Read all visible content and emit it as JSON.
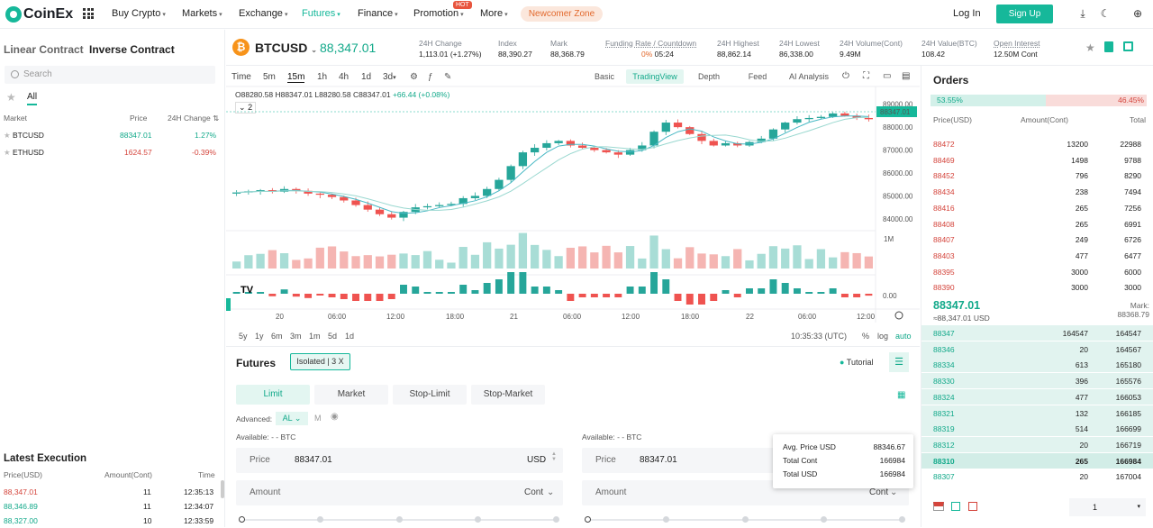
{
  "nav": {
    "logo": "CoinEx",
    "items": [
      "Buy Crypto",
      "Markets",
      "Exchange",
      "Futures",
      "Finance",
      "Promotion",
      "More"
    ],
    "hot_badge": "HOT",
    "newcomer": "Newcomer Zone",
    "login": "Log In",
    "signup": "Sign Up",
    "accent": "#16b89a"
  },
  "left": {
    "tabs": [
      "Linear Contract",
      "Inverse Contract"
    ],
    "search_placeholder": "Search",
    "all_tab": "All",
    "headers": {
      "market": "Market",
      "price": "Price",
      "change": "24H Change"
    },
    "markets": [
      {
        "name": "BTCUSD",
        "price": "88347.01",
        "change": "1.27%",
        "dir": "up"
      },
      {
        "name": "ETHUSD",
        "price": "1624.57",
        "change": "-0.39%",
        "dir": "down"
      }
    ],
    "latest_title": "Latest Execution",
    "latest_headers": {
      "price": "Price(USD)",
      "amount": "Amount(Cont)",
      "time": "Time"
    },
    "latest": [
      {
        "price": "88,347.01",
        "amount": "11",
        "time": "12:35:13",
        "dir": "down"
      },
      {
        "price": "88,346.89",
        "amount": "11",
        "time": "12:34:07",
        "dir": "up"
      },
      {
        "price": "88,327.00",
        "amount": "10",
        "time": "12:33:59",
        "dir": "up"
      }
    ]
  },
  "ticker": {
    "symbol": "BTCUSD",
    "price": "88,347.01",
    "stats": [
      {
        "label": "24H Change",
        "value": "1,113.01 (+1.27%)",
        "green": true
      },
      {
        "label": "Index",
        "value": "88,390.27"
      },
      {
        "label": "Mark",
        "value": "88,368.79"
      },
      {
        "label": "Funding Rate / Countdown",
        "value_rate": "0%",
        "value_time": "05:24"
      },
      {
        "label": "24H Highest",
        "value": "88,862.14"
      },
      {
        "label": "24H Lowest",
        "value": "86,338.00"
      },
      {
        "label": "24H Volume(Cont)",
        "value": "9.49M"
      },
      {
        "label": "24H Value(BTC)",
        "value": "108.42"
      },
      {
        "label": "Open Interest",
        "value": "12.50M Cont"
      }
    ]
  },
  "chart": {
    "timeframes": [
      "Time",
      "5m",
      "15m",
      "1h",
      "4h",
      "1d",
      "3d"
    ],
    "active_tf": "15m",
    "views": [
      "Basic",
      "TradingView",
      "Depth",
      "Feed",
      "AI Analysis"
    ],
    "active_view": "TradingView",
    "ohlc": {
      "o": "O88280.58",
      "h": "H88347.01",
      "l": "L88280.58",
      "c": "C88347.01",
      "chg": "+66.44 (+0.08%)"
    },
    "indicator_count": "2",
    "ranges": [
      "5y",
      "1y",
      "6m",
      "3m",
      "1m",
      "5d",
      "1d"
    ],
    "clock": "10:35:33 (UTC)",
    "pct": "%",
    "log": "log",
    "auto": "auto",
    "vol_label": "1M",
    "macd_label": "0.00",
    "last_price_tag": "88347.01"
  },
  "chart_data": {
    "type": "line",
    "title": "",
    "y_ticks": [
      "89000.00",
      "88000.00",
      "87000.00",
      "86000.00",
      "85000.00",
      "84000.00"
    ],
    "x_ticks": [
      "20",
      "06:00",
      "12:00",
      "18:00",
      "21",
      "06:00",
      "12:00",
      "18:00",
      "22",
      "06:00",
      "12:00"
    ],
    "ylim": [
      83600,
      89500
    ],
    "close": [
      85150,
      85200,
      85250,
      85180,
      85300,
      85220,
      85100,
      85050,
      84950,
      84800,
      84600,
      84400,
      84200,
      84050,
      84300,
      84500,
      84550,
      84600,
      84650,
      84900,
      85000,
      85300,
      85700,
      86300,
      86900,
      87100,
      87300,
      87400,
      87200,
      87100,
      87000,
      86900,
      86800,
      87000,
      87200,
      87800,
      88200,
      88000,
      87700,
      87400,
      87200,
      87300,
      87200,
      87350,
      87500,
      87900,
      88200,
      88350,
      88400,
      88450,
      88600,
      88500,
      88400,
      88347
    ]
  },
  "orders": {
    "title": "Orders",
    "buy_ratio": "53.55%",
    "sell_ratio": "46.45%",
    "headers": {
      "price": "Price(USD)",
      "amount": "Amount(Cont)",
      "total": "Total"
    },
    "asks": [
      {
        "p": "88472",
        "a": "13200",
        "t": "22988"
      },
      {
        "p": "88469",
        "a": "1498",
        "t": "9788"
      },
      {
        "p": "88452",
        "a": "796",
        "t": "8290"
      },
      {
        "p": "88434",
        "a": "238",
        "t": "7494"
      },
      {
        "p": "88416",
        "a": "265",
        "t": "7256"
      },
      {
        "p": "88408",
        "a": "265",
        "t": "6991"
      },
      {
        "p": "88407",
        "a": "249",
        "t": "6726"
      },
      {
        "p": "88403",
        "a": "477",
        "t": "6477"
      },
      {
        "p": "88395",
        "a": "3000",
        "t": "6000"
      },
      {
        "p": "88390",
        "a": "3000",
        "t": "3000"
      }
    ],
    "mid_price": "88347.01",
    "mid_sub": "≈88,347.01 USD",
    "mark_label": "Mark:",
    "mark_value": "88368.79",
    "bids": [
      {
        "p": "88347",
        "a": "164547",
        "t": "164547"
      },
      {
        "p": "88346",
        "a": "20",
        "t": "164567"
      },
      {
        "p": "88334",
        "a": "613",
        "t": "165180"
      },
      {
        "p": "88330",
        "a": "396",
        "t": "165576"
      },
      {
        "p": "88324",
        "a": "477",
        "t": "166053"
      },
      {
        "p": "88321",
        "a": "132",
        "t": "166185"
      },
      {
        "p": "88319",
        "a": "514",
        "t": "166699"
      },
      {
        "p": "88312",
        "a": "20",
        "t": "166719"
      },
      {
        "p": "88310",
        "a": "265",
        "t": "166984"
      },
      {
        "p": "88307",
        "a": "20",
        "t": "167004"
      }
    ],
    "depth_select": "1"
  },
  "futures": {
    "title": "Futures",
    "isolated": "Isolated | 3 X",
    "tutorial": "Tutorial",
    "types": [
      "Limit",
      "Market",
      "Stop-Limit",
      "Stop-Market"
    ],
    "advanced_label": "Advanced:",
    "advanced_value": "AL",
    "m_label": "M",
    "available_left": "Available: - - BTC",
    "available_right": "Available: - - BTC",
    "price_label": "Price",
    "price_value": "88347.01",
    "price_unit": "USD",
    "amount_label": "Amount",
    "amount_unit": "Cont"
  },
  "popup": {
    "rows": [
      {
        "label": "Avg. Price USD",
        "value": "88346.67"
      },
      {
        "label": "Total Cont",
        "value": "166984"
      },
      {
        "label": "Total USD",
        "value": "166984"
      }
    ]
  }
}
